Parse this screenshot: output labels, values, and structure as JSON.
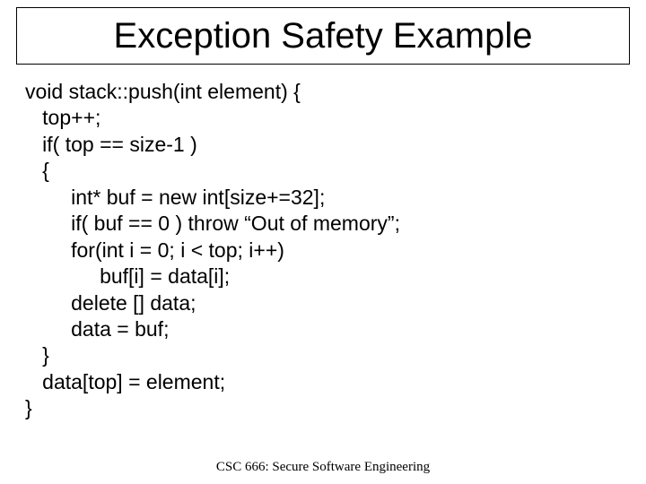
{
  "slide": {
    "title": "Exception Safety Example",
    "title_bg_color": "#d5dff3",
    "title_border_color": "#000000",
    "title_font_size": 40,
    "code_font_family": "Verdana",
    "code_font_size": 23,
    "code_lines": [
      "void stack::push(int element) {",
      "   top++;",
      "   if( top == size-1 )",
      "   {",
      "        int* buf = new int[size+=32];",
      "        if( buf == 0 ) throw “Out of memory”;",
      "        for(int i = 0; i < top; i++)",
      "             buf[i] = data[i];",
      "        delete [] data;",
      "        data = buf;",
      "   }",
      "   data[top] = element;",
      "}"
    ],
    "footer": "CSC 666: Secure Software Engineering",
    "background_color": "#ffffff"
  }
}
